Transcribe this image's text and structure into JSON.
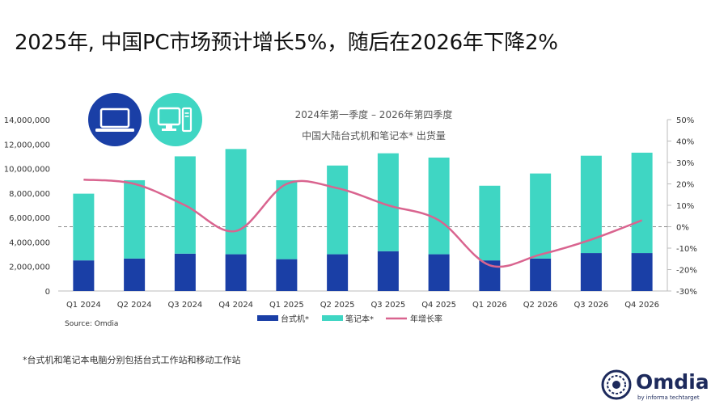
{
  "headline": "2025年, 中国PC市场预计增长5%，随后在2026年下降2%",
  "footnote": "*台式机和笔记本电脑分别包括台式工作站和移动工作站",
  "source": "Source: Omdia",
  "brand": {
    "name": "Omdia",
    "tagline": "by informa techtarget"
  },
  "icons": [
    "laptop-icon",
    "desktop-icon"
  ],
  "colors": {
    "desktop": "#1a3fa6",
    "notebook": "#3fd6c3",
    "growth": "#d9648f",
    "icon_bg": "#1a3fa6",
    "icon_bg2": "#3fd6c3"
  },
  "chart_data": {
    "type": "bar",
    "title": "2024年第一季度 – 2026年第四季度",
    "subtitle": "中国大陆台式机和笔记本* 出货量",
    "stacked": true,
    "categories": [
      "Q1 2024",
      "Q2 2024",
      "Q3 2024",
      "Q4 2024",
      "Q1 2025",
      "Q2 2025",
      "Q3 2025",
      "Q4 2025",
      "Q1 2026",
      "Q2 2026",
      "Q3 2026",
      "Q4 2026"
    ],
    "series": [
      {
        "name": "台式机*",
        "type": "bar",
        "axis": "left",
        "values": [
          2500000,
          2650000,
          3050000,
          3000000,
          2600000,
          3000000,
          3250000,
          3000000,
          2500000,
          2650000,
          3100000,
          3100000
        ]
      },
      {
        "name": "笔记本*",
        "type": "bar",
        "axis": "left",
        "values": [
          5450000,
          6400000,
          7950000,
          8600000,
          6450000,
          7250000,
          8000000,
          7900000,
          6100000,
          6950000,
          7950000,
          8200000
        ]
      },
      {
        "name": "年增长率",
        "type": "line",
        "axis": "right",
        "smooth": true,
        "values": [
          22,
          20,
          10,
          -2,
          20,
          18,
          10,
          3,
          -18,
          -13,
          -6,
          3
        ]
      }
    ],
    "y_left": {
      "min": 0,
      "max": 14000000,
      "step": 2000000,
      "ticks": [
        "0",
        "2,000,000",
        "4,000,000",
        "6,000,000",
        "8,000,000",
        "10,000,000",
        "12,000,000",
        "14,000,000"
      ]
    },
    "y_right": {
      "min": -30,
      "max": 50,
      "step": 10,
      "ticks": [
        "-30%",
        "-20%",
        "-10%",
        "0%",
        "10%",
        "20%",
        "30%",
        "40%",
        "50%"
      ]
    },
    "zero_line_dashed": true,
    "legend_position": "bottom",
    "grid": false
  }
}
